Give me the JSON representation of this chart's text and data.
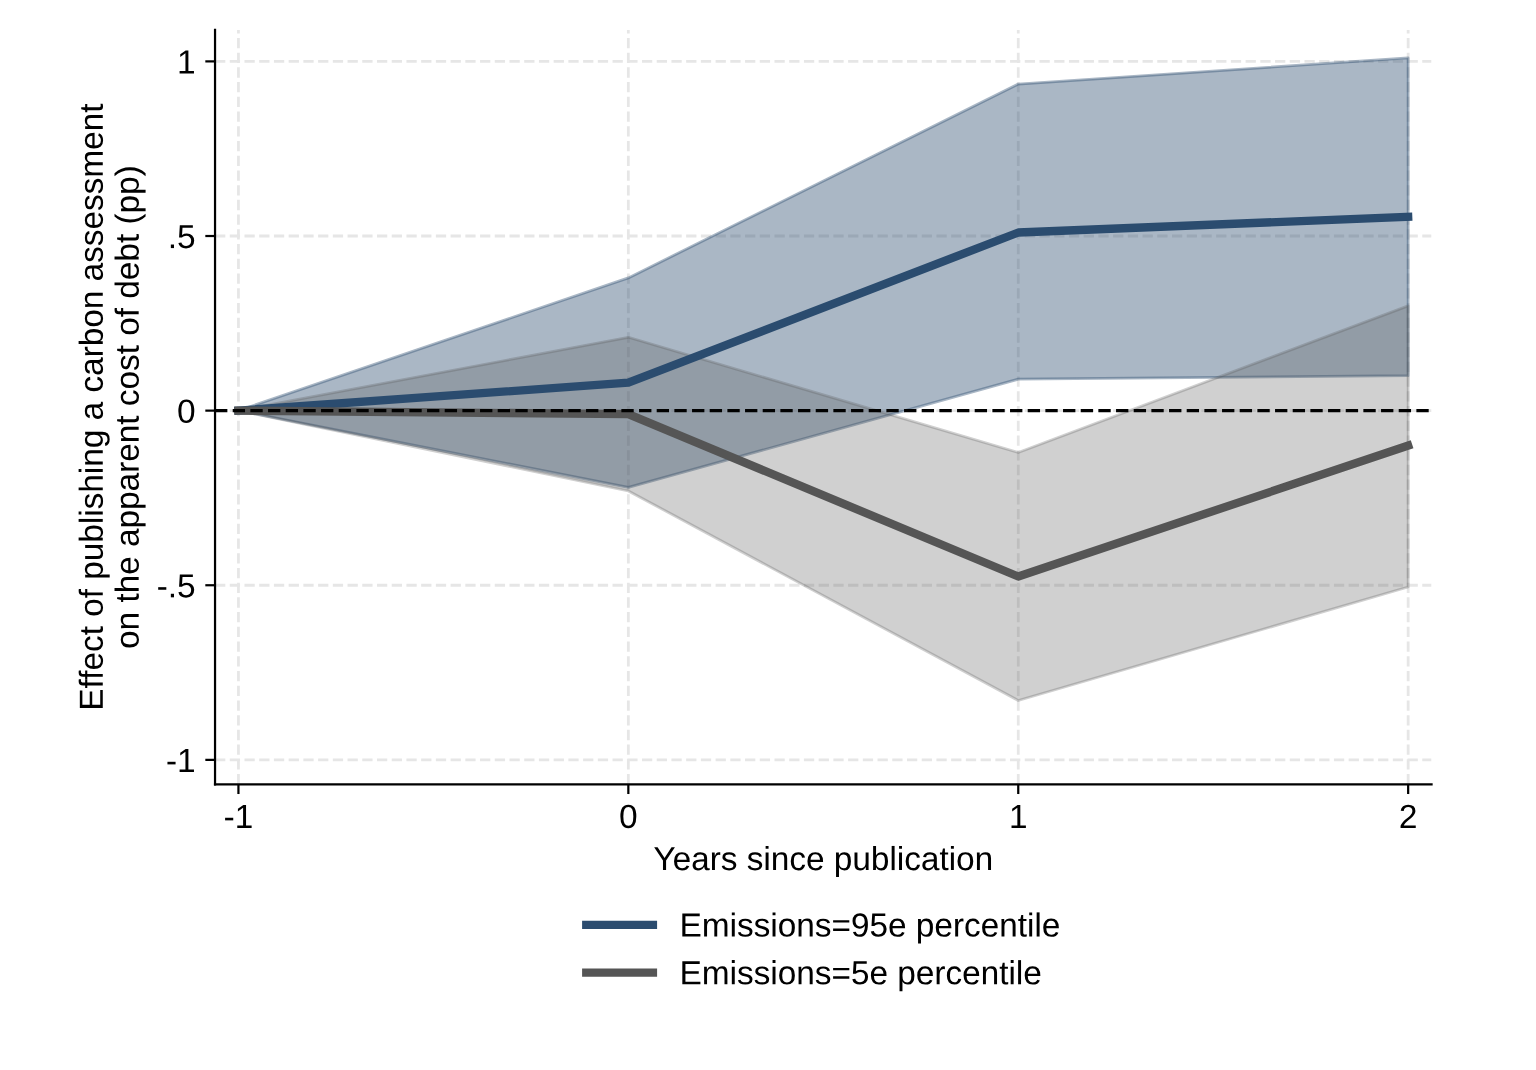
{
  "chart_data": {
    "type": "line",
    "xlabel": "Years since publication",
    "ylabel": "Effect of publishing a carbon assessment\non the apparent cost of debt (pp)",
    "x": [
      -1,
      0,
      1,
      2
    ],
    "series": [
      {
        "name": "Emissions=95e percentile",
        "color": "#2b4c6f",
        "values": [
          0,
          0.08,
          0.51,
          0.555
        ],
        "lower": [
          0,
          -0.22,
          0.09,
          0.1
        ],
        "upper": [
          0,
          0.38,
          0.935,
          1.01
        ]
      },
      {
        "name": "Emissions=5e percentile",
        "color": "#555555",
        "values": [
          0,
          -0.01,
          -0.475,
          -0.1
        ],
        "lower": [
          0,
          -0.23,
          -0.83,
          -0.505
        ],
        "upper": [
          0,
          0.21,
          -0.12,
          0.3
        ]
      }
    ],
    "xlim": [
      -1.06,
      2.06
    ],
    "ylim": [
      -1.07,
      1.09
    ],
    "xticks": [
      -1,
      0,
      1,
      2
    ],
    "yticks": [
      {
        "value": -1,
        "label": "-1"
      },
      {
        "value": -0.5,
        "label": "-.5"
      },
      0,
      {
        "value": 0.5,
        "label": ".5"
      },
      1
    ],
    "ref_lines": [
      {
        "axis": "y",
        "value": 0,
        "color": "#000000",
        "line_style": "dashed"
      }
    ],
    "grid": true,
    "legend": "bottom",
    "line_style": "solid",
    "marker": "none"
  }
}
